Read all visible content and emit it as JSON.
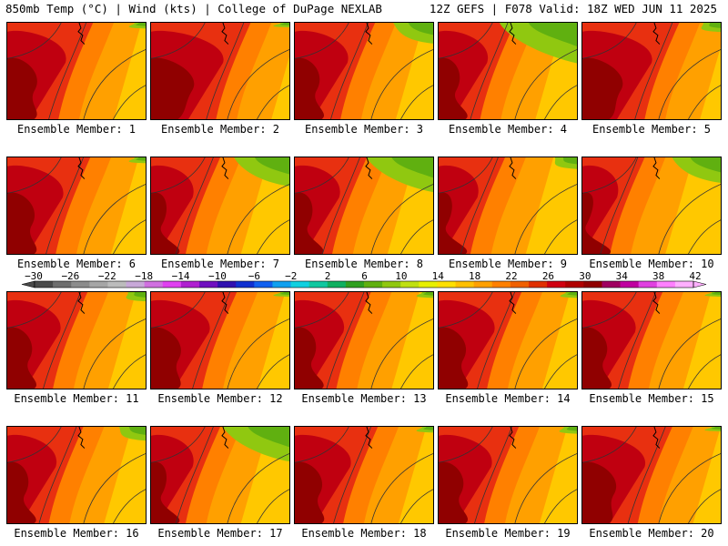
{
  "header": {
    "left": "850mb Temp (°C) | Wind (kts) | College of DuPage NEXLAB",
    "right": "12Z GEFS | F078 Valid: 18Z WED JUN 11 2025"
  },
  "panels": [
    {
      "label": "Ensemble Member: 1",
      "warm": 0.62,
      "green": 0.05
    },
    {
      "label": "Ensemble Member: 2",
      "warm": 0.72,
      "green": 0.04
    },
    {
      "label": "Ensemble Member: 3",
      "warm": 0.58,
      "green": 0.18
    },
    {
      "label": "Ensemble Member: 4",
      "warm": 0.55,
      "green": 0.35
    },
    {
      "label": "Ensemble Member: 5",
      "warm": 0.7,
      "green": 0.08
    },
    {
      "label": "Ensemble Member: 6",
      "warm": 0.6,
      "green": 0.05
    },
    {
      "label": "Ensemble Member: 7",
      "warm": 0.5,
      "green": 0.25
    },
    {
      "label": "Ensemble Member: 8",
      "warm": 0.52,
      "green": 0.3
    },
    {
      "label": "Ensemble Member: 9",
      "warm": 0.48,
      "green": 0.1
    },
    {
      "label": "Ensemble Member: 10",
      "warm": 0.45,
      "green": 0.22
    },
    {
      "label": "Ensemble Member: 11",
      "warm": 0.58,
      "green": 0.08
    },
    {
      "label": "Ensemble Member: 12",
      "warm": 0.62,
      "green": 0.04
    },
    {
      "label": "Ensemble Member: 13",
      "warm": 0.55,
      "green": 0.05
    },
    {
      "label": "Ensemble Member: 14",
      "warm": 0.6,
      "green": 0.05
    },
    {
      "label": "Ensemble Member: 15",
      "warm": 0.58,
      "green": 0.04
    },
    {
      "label": "Ensemble Member: 16",
      "warm": 0.55,
      "green": 0.12
    },
    {
      "label": "Ensemble Member: 17",
      "warm": 0.5,
      "green": 0.3
    },
    {
      "label": "Ensemble Member: 18",
      "warm": 0.6,
      "green": 0.05
    },
    {
      "label": "Ensemble Member: 19",
      "warm": 0.58,
      "green": 0.06
    },
    {
      "label": "Ensemble Member: 20",
      "warm": 0.65,
      "green": 0.04
    }
  ],
  "colorbar": {
    "ticks": [
      "−30",
      "−26",
      "−22",
      "−18",
      "−14",
      "−10",
      "−6",
      "−2",
      "2",
      "6",
      "10",
      "14",
      "18",
      "22",
      "26",
      "30",
      "34",
      "38",
      "42"
    ],
    "colors": [
      "#4a4a4a",
      "#6e6e6e",
      "#8c8c8c",
      "#a6a6a6",
      "#bcbcbc",
      "#c8a8d8",
      "#d070e0",
      "#e040f0",
      "#b020d0",
      "#7010c0",
      "#3010b0",
      "#1030d0",
      "#1060f0",
      "#10a0f0",
      "#10d0e0",
      "#10c8a0",
      "#10b060",
      "#30a020",
      "#60b010",
      "#90c810",
      "#c0e010",
      "#e8f000",
      "#ffe000",
      "#ffc000",
      "#ffa000",
      "#ff8000",
      "#f06000",
      "#e03000",
      "#d00010",
      "#b00000",
      "#900000",
      "#a00060",
      "#c000a0",
      "#e040e0",
      "#ff80ff",
      "#ffb0ff"
    ]
  }
}
